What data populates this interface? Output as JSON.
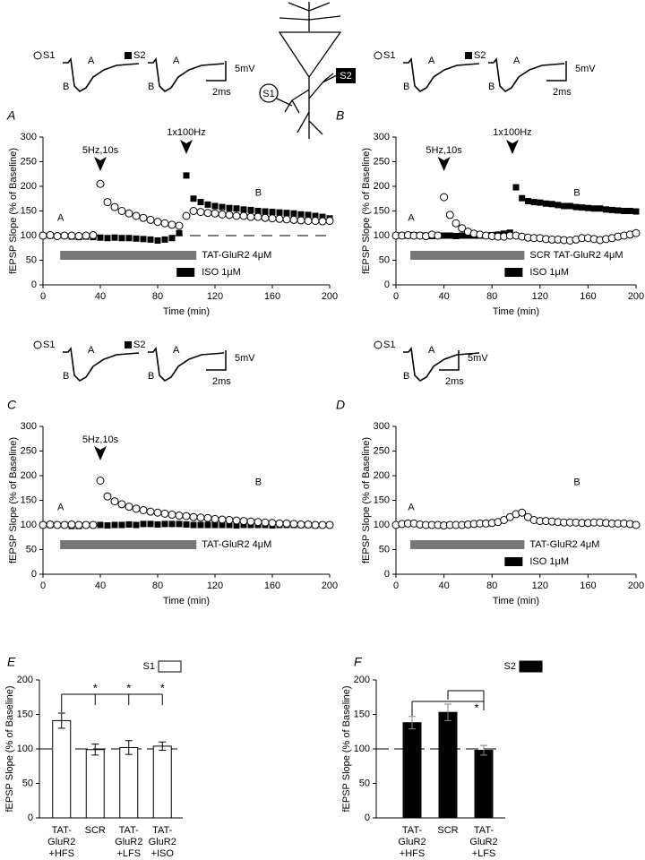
{
  "diagram": {
    "labels": [
      "S1",
      "S2"
    ]
  },
  "chart_data": [
    {
      "type": "scatter",
      "panel": "A",
      "x": [
        0,
        5,
        10,
        15,
        20,
        25,
        30,
        35,
        40,
        45,
        50,
        55,
        60,
        65,
        70,
        75,
        80,
        85,
        90,
        95,
        100,
        105,
        110,
        115,
        120,
        125,
        130,
        135,
        140,
        145,
        150,
        155,
        160,
        165,
        170,
        175,
        180,
        185,
        190,
        195,
        200
      ],
      "series": [
        {
          "name": "S1",
          "marker": "open-circle",
          "color": "#000000",
          "values": [
            100,
            101,
            99,
            100,
            100,
            99,
            100,
            101,
            205,
            168,
            158,
            150,
            145,
            140,
            136,
            132,
            128,
            125,
            122,
            120,
            140,
            150,
            148,
            146,
            145,
            143,
            142,
            140,
            140,
            138,
            138,
            136,
            135,
            134,
            133,
            132,
            131,
            130,
            130,
            129,
            130
          ]
        },
        {
          "name": "S2",
          "marker": "filled-square",
          "color": "#000000",
          "values": [
            100,
            100,
            99,
            100,
            98,
            97,
            98,
            97,
            96,
            95,
            96,
            95,
            95,
            94,
            93,
            92,
            90,
            92,
            95,
            105,
            222,
            175,
            168,
            163,
            160,
            158,
            156,
            155,
            153,
            152,
            150,
            149,
            148,
            147,
            146,
            145,
            143,
            142,
            140,
            138,
            135
          ]
        }
      ],
      "xlim": [
        0,
        200
      ],
      "xticks": [
        0,
        40,
        80,
        120,
        160,
        200
      ],
      "ylim": [
        0,
        300
      ],
      "yticks": [
        0,
        50,
        100,
        150,
        200,
        250,
        300
      ],
      "xlabel": "Time (min)",
      "ylabel": "fEPSP Slope (% of Baseline)",
      "reference_line": 100,
      "stimuli": [
        {
          "label": "5Hz,10s",
          "time": 40
        },
        {
          "label": "1x100Hz",
          "time": 100
        }
      ],
      "annotations": [
        "A",
        "B"
      ],
      "treatments": [
        {
          "label": "TAT-GluR2 4μM",
          "color": "#777777",
          "start": 12,
          "end": 107
        },
        {
          "label": "ISO 1μM",
          "color": "#000000"
        }
      ],
      "inset": {
        "scale_labels": [
          "5mV",
          "2ms"
        ]
      }
    },
    {
      "type": "scatter",
      "panel": "B",
      "x": [
        0,
        5,
        10,
        15,
        20,
        25,
        30,
        35,
        40,
        45,
        50,
        55,
        60,
        65,
        70,
        75,
        80,
        85,
        90,
        95,
        100,
        105,
        110,
        115,
        120,
        125,
        130,
        135,
        140,
        145,
        150,
        155,
        160,
        165,
        170,
        175,
        180,
        185,
        190,
        195,
        200
      ],
      "series": [
        {
          "name": "S1",
          "marker": "open-circle",
          "color": "#000000",
          "values": [
            100,
            100,
            101,
            100,
            100,
            99,
            102,
            100,
            178,
            142,
            125,
            115,
            108,
            104,
            102,
            100,
            99,
            98,
            98,
            100,
            100,
            98,
            96,
            95,
            95,
            93,
            92,
            92,
            91,
            90,
            92,
            95,
            95,
            93,
            91,
            93,
            95,
            98,
            100,
            102,
            105
          ]
        },
        {
          "name": "S2",
          "marker": "filled-square",
          "color": "#000000",
          "values": [
            100,
            100,
            100,
            101,
            100,
            100,
            99,
            100,
            100,
            100,
            99,
            100,
            100,
            100,
            100,
            100,
            101,
            102,
            104,
            106,
            198,
            176,
            170,
            168,
            167,
            165,
            164,
            162,
            160,
            160,
            158,
            157,
            156,
            155,
            155,
            153,
            152,
            151,
            150,
            150,
            149
          ]
        }
      ],
      "xlim": [
        0,
        200
      ],
      "xticks": [
        0,
        40,
        80,
        120,
        160,
        200
      ],
      "ylim": [
        0,
        300
      ],
      "yticks": [
        0,
        50,
        100,
        150,
        200,
        250,
        300
      ],
      "xlabel": "Time (min)",
      "ylabel": "fEPSP Slope (% of Baseline)",
      "stimuli": [
        {
          "label": "5Hz,10s",
          "time": 40
        },
        {
          "label": "1x100Hz",
          "time": 97
        }
      ],
      "annotations": [
        "A",
        "B"
      ],
      "treatments": [
        {
          "label": "SCR TAT-GluR2 4μM",
          "color": "#777777",
          "start": 12,
          "end": 107
        },
        {
          "label": "ISO 1μM",
          "color": "#000000"
        }
      ],
      "inset": {
        "scale_labels": [
          "5mV",
          "2ms"
        ]
      }
    },
    {
      "type": "scatter",
      "panel": "C",
      "x": [
        0,
        5,
        10,
        15,
        20,
        25,
        30,
        35,
        40,
        45,
        50,
        55,
        60,
        65,
        70,
        75,
        80,
        85,
        90,
        95,
        100,
        105,
        110,
        115,
        120,
        125,
        130,
        135,
        140,
        145,
        150,
        155,
        160,
        165,
        170,
        175,
        180,
        185,
        190,
        195,
        200
      ],
      "series": [
        {
          "name": "S1",
          "marker": "open-circle",
          "color": "#000000",
          "values": [
            100,
            101,
            100,
            100,
            101,
            100,
            100,
            100,
            190,
            158,
            148,
            142,
            137,
            133,
            130,
            127,
            125,
            123,
            121,
            119,
            118,
            116,
            115,
            114,
            112,
            111,
            110,
            109,
            108,
            107,
            106,
            105,
            104,
            103,
            103,
            102,
            101,
            101,
            100,
            100,
            100
          ]
        },
        {
          "name": "S2",
          "marker": "filled-square",
          "color": "#000000",
          "values": [
            100,
            100,
            100,
            100,
            98,
            98,
            100,
            100,
            100,
            99,
            100,
            100,
            101,
            100,
            102,
            102,
            101,
            102,
            102,
            102,
            101,
            100,
            100,
            100,
            100,
            100,
            100,
            99,
            100,
            100,
            100,
            100,
            99,
            100,
            100,
            100,
            100,
            100,
            99,
            100,
            100
          ]
        }
      ],
      "xlim": [
        0,
        200
      ],
      "xticks": [
        0,
        40,
        80,
        120,
        160,
        200
      ],
      "ylim": [
        0,
        300
      ],
      "yticks": [
        0,
        50,
        100,
        150,
        200,
        250,
        300
      ],
      "xlabel": "Time (min)",
      "ylabel": "fEPSP Slope (% of Baseline)",
      "stimuli": [
        {
          "label": "5Hz,10s",
          "time": 40
        }
      ],
      "annotations": [
        "A",
        "B"
      ],
      "treatments": [
        {
          "label": "TAT-GluR2 4μM",
          "color": "#777777",
          "start": 12,
          "end": 107
        }
      ],
      "inset": {
        "scale_labels": [
          "5mV",
          "2ms"
        ]
      }
    },
    {
      "type": "scatter",
      "panel": "D",
      "x": [
        0,
        5,
        10,
        15,
        20,
        25,
        30,
        35,
        40,
        45,
        50,
        55,
        60,
        65,
        70,
        75,
        80,
        85,
        90,
        95,
        100,
        105,
        110,
        115,
        120,
        125,
        130,
        135,
        140,
        145,
        150,
        155,
        160,
        165,
        170,
        175,
        180,
        185,
        190,
        195,
        200
      ],
      "series": [
        {
          "name": "S1",
          "marker": "open-circle",
          "color": "#000000",
          "values": [
            100,
            102,
            103,
            103,
            101,
            100,
            100,
            100,
            99,
            100,
            100,
            100,
            101,
            102,
            103,
            103,
            104,
            106,
            110,
            116,
            122,
            125,
            116,
            110,
            108,
            108,
            107,
            106,
            105,
            105,
            105,
            104,
            104,
            105,
            105,
            104,
            103,
            103,
            103,
            102,
            100
          ]
        }
      ],
      "xlim": [
        0,
        200
      ],
      "xticks": [
        0,
        40,
        80,
        120,
        160,
        200
      ],
      "ylim": [
        0,
        300
      ],
      "yticks": [
        0,
        50,
        100,
        150,
        200,
        250,
        300
      ],
      "xlabel": "Time (min)",
      "ylabel": "fEPSP Slope (% of Baseline)",
      "stimuli": [],
      "annotations": [
        "A",
        "B"
      ],
      "treatments": [
        {
          "label": "TAT-GluR2 4μM",
          "color": "#777777",
          "start": 12,
          "end": 107
        },
        {
          "label": "ISO 1μM",
          "color": "#000000"
        }
      ],
      "inset": {
        "scale_labels": [
          "5mV",
          "2ms"
        ]
      }
    },
    {
      "type": "bar",
      "panel": "E",
      "categories": [
        "TAT-\nGluR2\n+HFS",
        "SCR",
        "TAT-\nGluR2\n+LFS",
        "TAT-\nGluR2\n+ISO"
      ],
      "series": [
        {
          "name": "S1",
          "color": "#ffffff",
          "values": [
            141,
            99,
            102,
            104
          ],
          "errors": [
            11,
            8,
            10,
            6
          ]
        }
      ],
      "ylim": [
        0,
        200
      ],
      "yticks": [
        0,
        50,
        100,
        150,
        200
      ],
      "ylabel": "fEPSP Slope (% of Baseline)",
      "reference_line": 100,
      "significance": [
        "*",
        "*",
        "*"
      ]
    },
    {
      "type": "bar",
      "panel": "F",
      "categories": [
        "TAT-\nGluR2\n+HFS",
        "SCR",
        "TAT-\nGluR2\n+LFS"
      ],
      "series": [
        {
          "name": "S2",
          "color": "#000000",
          "values": [
            138,
            153,
            98
          ],
          "errors": [
            9,
            12,
            7
          ]
        }
      ],
      "ylim": [
        0,
        200
      ],
      "yticks": [
        0,
        50,
        100,
        150,
        200
      ],
      "ylabel": "fEPSP Slope (% of Baseline)",
      "reference_line": 100,
      "significance": [
        "*"
      ]
    }
  ]
}
